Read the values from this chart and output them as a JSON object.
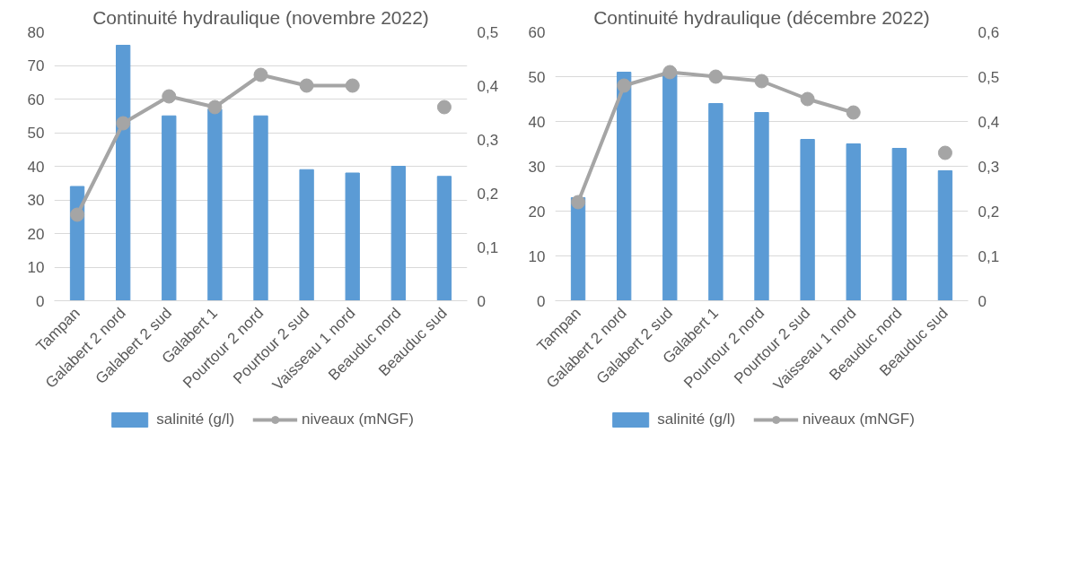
{
  "chart_data": [
    {
      "type": "bar",
      "title": "Continuité hydraulique (novembre 2022)",
      "categories": [
        "Tampan",
        "Galabert 2 nord",
        "Galabert 2 sud",
        "Galabert 1",
        "Pourtour 2 nord",
        "Pourtour 2 sud",
        "Vaisseau 1 nord",
        "Beauduc nord",
        "Beauduc sud"
      ],
      "series": [
        {
          "name": "salinité (g/l)",
          "color": "#5b9bd5",
          "values": [
            34,
            76,
            55,
            57,
            55,
            39,
            38,
            40,
            37
          ]
        },
        {
          "name": "niveaux (mNGF)",
          "type": "line",
          "axis": "y2",
          "color": "#a5a5a5",
          "marker": "circle",
          "values": [
            0.16,
            0.33,
            0.38,
            0.36,
            0.42,
            0.4,
            0.4,
            null,
            0.36
          ]
        }
      ],
      "ylim": [
        0,
        80
      ],
      "yticks": [
        0,
        10,
        20,
        30,
        40,
        50,
        60,
        70,
        80
      ],
      "y2lim": [
        0,
        0.5
      ],
      "y2ticks": [
        0,
        {
          "value": 0.1,
          "label": "0,1"
        },
        {
          "value": 0.2,
          "label": "0,2"
        },
        {
          "value": 0.3,
          "label": "0,3"
        },
        {
          "value": 0.4,
          "label": "0,4"
        },
        {
          "value": 0.5,
          "label": "0,5"
        }
      ],
      "grid": "y",
      "legend": "bottom"
    },
    {
      "type": "bar",
      "title": "Continuité hydraulique (décembre 2022)",
      "categories": [
        "Tampan",
        "Galabert 2 nord",
        "Galabert 2 sud",
        "Galabert 1",
        "Pourtour 2 nord",
        "Pourtour 2 sud",
        "Vaisseau 1 nord",
        "Beauduc nord",
        "Beauduc sud"
      ],
      "series": [
        {
          "name": "salinité (g/l)",
          "color": "#5b9bd5",
          "values": [
            23,
            51,
            51,
            44,
            42,
            36,
            35,
            34,
            29
          ]
        },
        {
          "name": "niveaux (mNGF)",
          "type": "line",
          "axis": "y2",
          "color": "#a5a5a5",
          "marker": "circle",
          "values": [
            0.22,
            0.48,
            0.51,
            0.5,
            0.49,
            0.45,
            0.42,
            null,
            0.33
          ]
        }
      ],
      "ylim": [
        0,
        60
      ],
      "yticks": [
        0,
        10,
        20,
        30,
        40,
        50,
        60
      ],
      "y2lim": [
        0,
        0.6
      ],
      "y2ticks": [
        0,
        {
          "value": 0.1,
          "label": "0,1"
        },
        {
          "value": 0.2,
          "label": "0,2"
        },
        {
          "value": 0.3,
          "label": "0,3"
        },
        {
          "value": 0.4,
          "label": "0,4"
        },
        {
          "value": 0.5,
          "label": "0,5"
        },
        {
          "value": 0.6,
          "label": "0,6"
        }
      ],
      "grid": "y",
      "legend": "bottom"
    }
  ]
}
